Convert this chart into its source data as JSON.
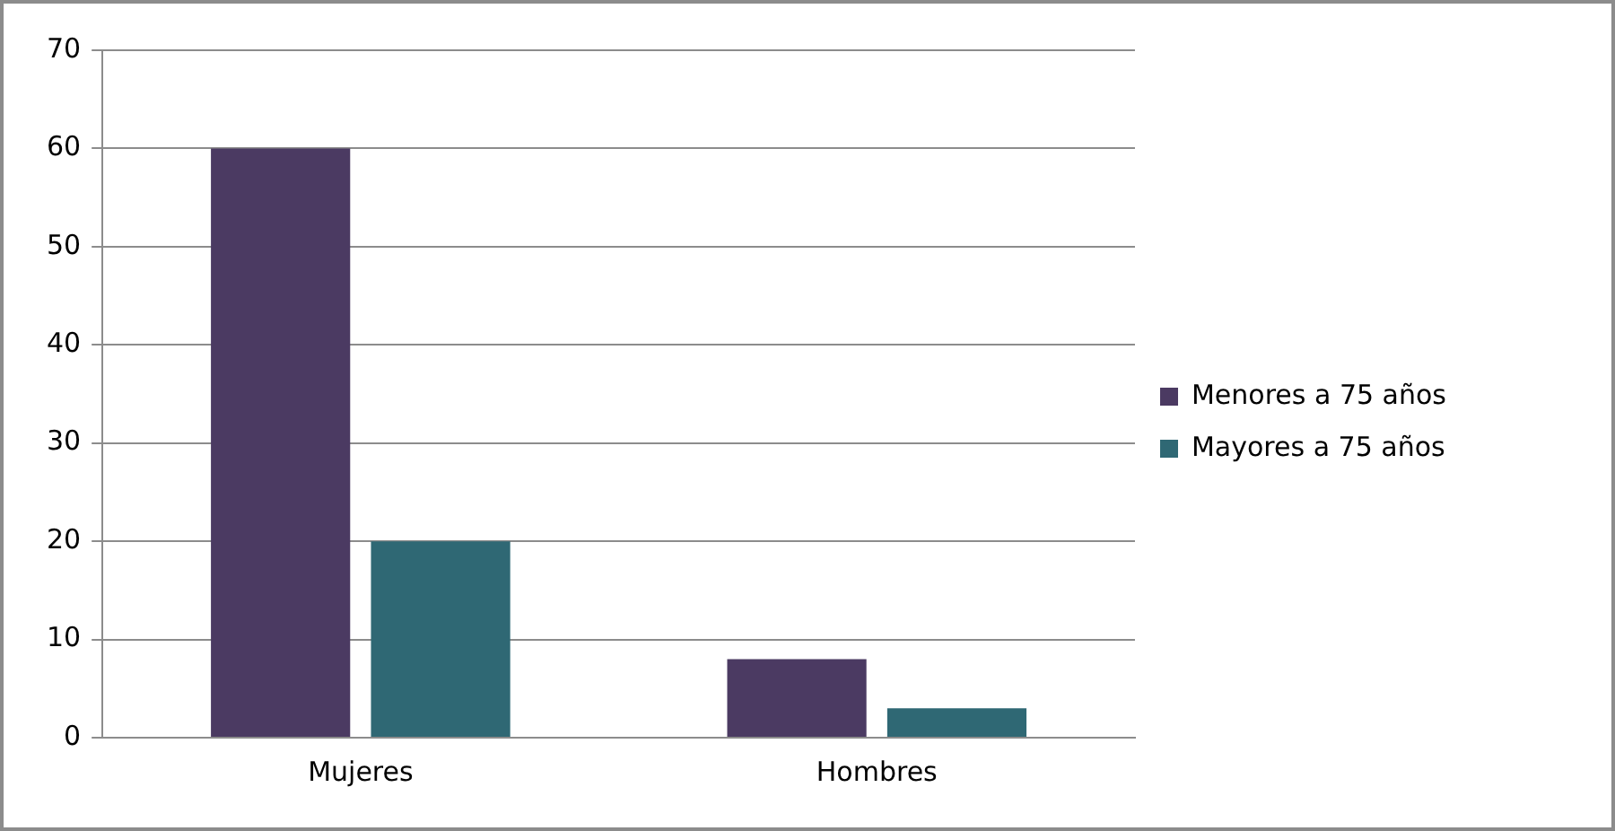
{
  "chart_data": {
    "type": "bar",
    "categories": [
      "Mujeres",
      "Hombres"
    ],
    "series": [
      {
        "name": "Menores a 75 años",
        "color": "#4b3a62",
        "values": [
          60,
          8
        ]
      },
      {
        "name": "Mayores a 75 años",
        "color": "#2f6874",
        "values": [
          20,
          3
        ]
      }
    ],
    "ylim": [
      0,
      70
    ],
    "yticks": [
      0,
      10,
      20,
      30,
      40,
      50,
      60,
      70
    ],
    "grid": "y",
    "legend": "right"
  }
}
